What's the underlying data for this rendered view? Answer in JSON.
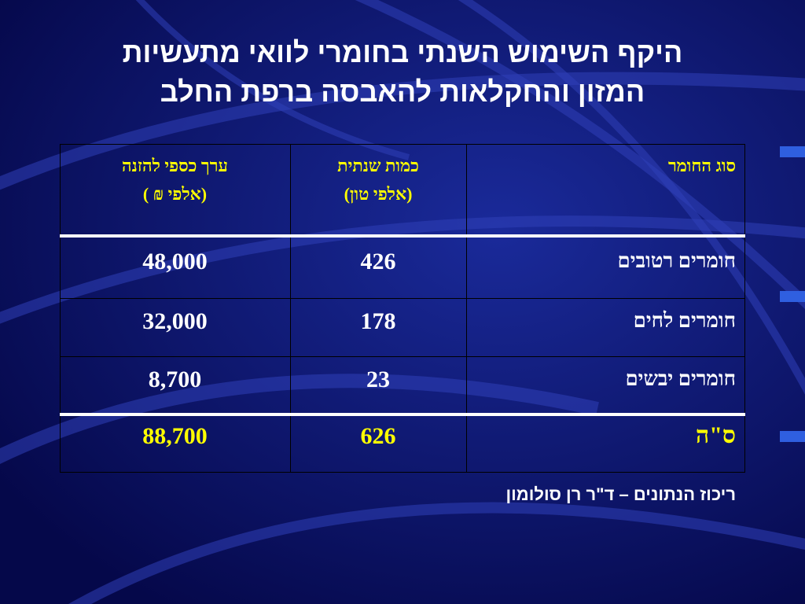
{
  "title": {
    "line1": "היקף השימוש השנתי בחומרי לוואי מתעשיות",
    "line2": "המזון והחקלאות להאבסה ברפת החלב"
  },
  "table": {
    "headers": {
      "material": "סוג החומר",
      "quantity_line1": "כמות שנתית",
      "quantity_line2": "(אלפי טון)",
      "value_line1": "ערך כספי להזנה",
      "value_line2": "(אלפי ₪ )"
    },
    "rows": [
      {
        "material": "חומרים רטובים",
        "quantity": "426",
        "value": "48,000"
      },
      {
        "material": "חומרים לחים",
        "quantity": "178",
        "value": "32,000"
      },
      {
        "material": "חומרים יבשים",
        "quantity": "23",
        "value": "8,700"
      }
    ],
    "total": {
      "material": "ס\"ה",
      "quantity": "626",
      "value": "88,700"
    }
  },
  "footnote": "ריכוז הנתונים – ד\"ר רן סולומון",
  "colors": {
    "background": "#0b0f6a",
    "header_text": "#ffff00",
    "body_text": "#ffffff",
    "total_text": "#ffff00"
  }
}
